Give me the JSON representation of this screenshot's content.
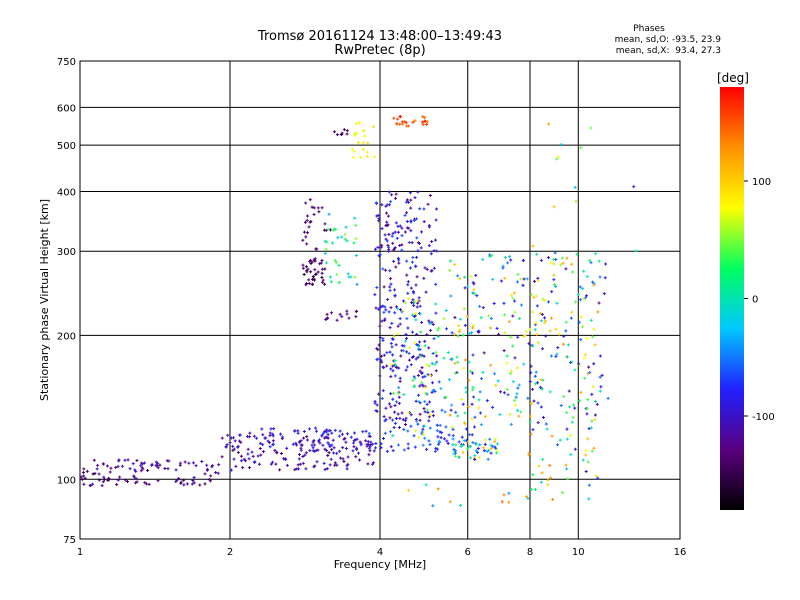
{
  "chart_data": {
    "type": "scatter",
    "title": "Tromsø 20161124 13:48:00–13:49:43",
    "subtitle": "RwPretec (8p)",
    "xlabel": "Frequency [MHz]",
    "ylabel": "Stationary phase Virtual Height [km]",
    "x_scale": "log2",
    "y_scale": "log",
    "xlim": [
      1,
      16
    ],
    "ylim": [
      75,
      750
    ],
    "x_ticks": [
      1,
      2,
      4,
      6,
      8,
      10,
      16
    ],
    "y_ticks": [
      75,
      100,
      200,
      300,
      400,
      500,
      600,
      750
    ],
    "grid": true,
    "phase_stats": {
      "title": "Phases",
      "line_o": "mean, sd,O: -93.5, 23.9",
      "line_x": "mean, sd,X:  93.4, 27.3"
    },
    "colorbar": {
      "label": "[deg]",
      "ticks": [
        "100",
        "0",
        "-100"
      ],
      "range": [
        -180,
        180
      ],
      "colors": [
        "#000000",
        "#5a0080",
        "#2020ff",
        "#00c8ff",
        "#00ff60",
        "#ffff00",
        "#ff9000",
        "#ff0000"
      ]
    },
    "clusters": [
      {
        "x": [
          1.0,
          1.9
        ],
        "y": [
          97,
          110
        ],
        "phase": [
          -150,
          -95
        ],
        "n": 110
      },
      {
        "x": [
          1.9,
          3.9
        ],
        "y": [
          104,
          125
        ],
        "phase": [
          -140,
          -80
        ],
        "n": 150
      },
      {
        "x": [
          2.3,
          4.0
        ],
        "y": [
          114,
          128
        ],
        "phase": [
          -120,
          -70
        ],
        "n": 70
      },
      {
        "x": [
          3.8,
          6.2
        ],
        "y": [
          114,
          130
        ],
        "phase": [
          -100,
          -40
        ],
        "n": 60
      },
      {
        "x": [
          5.6,
          7.0
        ],
        "y": [
          110,
          122
        ],
        "phase": [
          -110,
          120
        ],
        "n": 50
      },
      {
        "x": [
          2.8,
          3.1
        ],
        "y": [
          255,
          290
        ],
        "phase": [
          -160,
          -120
        ],
        "n": 40
      },
      {
        "x": [
          2.8,
          3.2
        ],
        "y": [
          300,
          390
        ],
        "phase": [
          -150,
          -120
        ],
        "n": 25
      },
      {
        "x": [
          3.1,
          3.6
        ],
        "y": [
          255,
          360
        ],
        "phase": [
          -40,
          60
        ],
        "n": 35
      },
      {
        "x": [
          3.1,
          3.6
        ],
        "y": [
          215,
          225
        ],
        "phase": [
          -140,
          -110
        ],
        "n": 15
      },
      {
        "x": [
          3.2,
          3.5
        ],
        "y": [
          525,
          545
        ],
        "phase": [
          -150,
          -130
        ],
        "n": 8
      },
      {
        "x": [
          3.5,
          3.9
        ],
        "y": [
          470,
          560
        ],
        "phase": [
          60,
          100
        ],
        "n": 20
      },
      {
        "x": [
          4.2,
          5.0
        ],
        "y": [
          545,
          575
        ],
        "phase": [
          130,
          170
        ],
        "n": 25
      },
      {
        "x": [
          3.9,
          5.2
        ],
        "y": [
          130,
          400
        ],
        "phase": [
          -130,
          -60
        ],
        "n": 320
      },
      {
        "x": [
          4.2,
          5.6
        ],
        "y": [
          120,
          250
        ],
        "phase": [
          -80,
          90
        ],
        "n": 80
      },
      {
        "x": [
          5.5,
          11.5
        ],
        "y": [
          130,
          300
        ],
        "phase": [
          -120,
          130
        ],
        "n": 320
      },
      {
        "x": [
          7.8,
          11.0
        ],
        "y": [
          95,
          130
        ],
        "phase": [
          -110,
          140
        ],
        "n": 40
      },
      {
        "x": [
          4.3,
          11.0
        ],
        "y": [
          88,
          98
        ],
        "phase": [
          -100,
          160
        ],
        "n": 15
      },
      {
        "x": [
          7.5,
          13.5
        ],
        "y": [
          300,
          580
        ],
        "phase": [
          -130,
          150
        ],
        "n": 12
      }
    ]
  }
}
